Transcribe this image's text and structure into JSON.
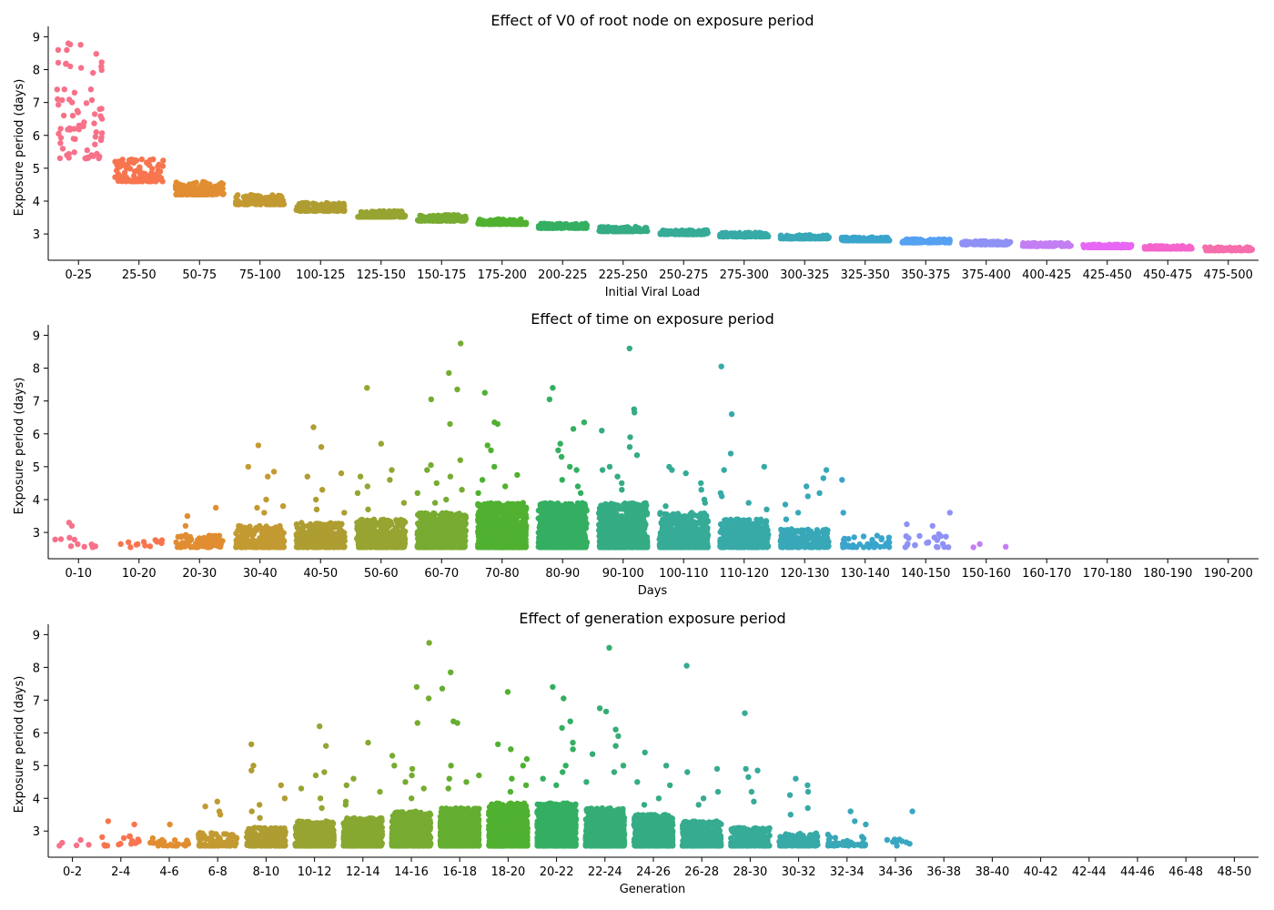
{
  "chart_data": [
    {
      "type": "scatter",
      "title": "Effect of V0 of root node on exposure period",
      "xlabel": "Initial Viral Load",
      "ylabel": "Exposure period (days)",
      "ylim": [
        2.2,
        9.15
      ],
      "yticks": [
        3,
        4,
        5,
        6,
        7,
        8,
        9
      ],
      "grid": false,
      "categories": [
        "0-25",
        "25-50",
        "50-75",
        "75-100",
        "100-125",
        "125-150",
        "150-175",
        "175-200",
        "200-225",
        "225-250",
        "250-275",
        "275-300",
        "300-325",
        "325-350",
        "350-375",
        "375-400",
        "400-425",
        "425-450",
        "450-475",
        "475-500"
      ],
      "colors": [
        "#f77189",
        "#f7754f",
        "#e18d31",
        "#c39a32",
        "#ae9d31",
        "#97a431",
        "#77ab31",
        "#50b131",
        "#34af62",
        "#35ac83",
        "#36ab97",
        "#37aaa7",
        "#38a8b8",
        "#3aa5cc",
        "#55a0f1",
        "#8f91f4",
        "#c47ef4",
        "#e766f4",
        "#f565cc",
        "#f66eab"
      ],
      "series": [
        {
          "category": "0-25",
          "n": 55,
          "y_min": 5.3,
          "y_max": 8.8,
          "outliers": [
            8.8,
            8.6,
            8.1,
            7.9,
            7.4,
            7.4,
            7.3,
            7.1,
            7.0,
            6.8,
            6.7,
            6.6,
            6.4,
            6.3,
            6.3,
            6.2,
            6.1,
            5.9
          ]
        },
        {
          "category": "25-50",
          "n": 120,
          "y_min": 4.6,
          "y_max": 5.3,
          "outliers": []
        },
        {
          "category": "50-75",
          "n": 140,
          "y_min": 4.2,
          "y_max": 4.6,
          "outliers": []
        },
        {
          "category": "75-100",
          "n": 150,
          "y_min": 3.9,
          "y_max": 4.2,
          "outliers": []
        },
        {
          "category": "100-125",
          "n": 150,
          "y_min": 3.7,
          "y_max": 3.95,
          "outliers": []
        },
        {
          "category": "125-150",
          "n": 150,
          "y_min": 3.52,
          "y_max": 3.7,
          "outliers": []
        },
        {
          "category": "150-175",
          "n": 150,
          "y_min": 3.4,
          "y_max": 3.58,
          "outliers": []
        },
        {
          "category": "175-200",
          "n": 150,
          "y_min": 3.3,
          "y_max": 3.45,
          "outliers": []
        },
        {
          "category": "200-225",
          "n": 150,
          "y_min": 3.18,
          "y_max": 3.32,
          "outliers": []
        },
        {
          "category": "225-250",
          "n": 150,
          "y_min": 3.08,
          "y_max": 3.22,
          "outliers": []
        },
        {
          "category": "250-275",
          "n": 150,
          "y_min": 2.99,
          "y_max": 3.12,
          "outliers": []
        },
        {
          "category": "275-300",
          "n": 150,
          "y_min": 2.92,
          "y_max": 3.04,
          "outliers": []
        },
        {
          "category": "300-325",
          "n": 150,
          "y_min": 2.86,
          "y_max": 2.97,
          "outliers": []
        },
        {
          "category": "325-350",
          "n": 150,
          "y_min": 2.8,
          "y_max": 2.9,
          "outliers": []
        },
        {
          "category": "350-375",
          "n": 150,
          "y_min": 2.74,
          "y_max": 2.84,
          "outliers": []
        },
        {
          "category": "375-400",
          "n": 150,
          "y_min": 2.68,
          "y_max": 2.78,
          "outliers": []
        },
        {
          "category": "400-425",
          "n": 150,
          "y_min": 2.63,
          "y_max": 2.73,
          "outliers": []
        },
        {
          "category": "425-450",
          "n": 150,
          "y_min": 2.59,
          "y_max": 2.68,
          "outliers": []
        },
        {
          "category": "450-475",
          "n": 150,
          "y_min": 2.55,
          "y_max": 2.64,
          "outliers": []
        },
        {
          "category": "475-500",
          "n": 140,
          "y_min": 2.5,
          "y_max": 2.6,
          "outliers": []
        }
      ]
    },
    {
      "type": "scatter",
      "title": "Effect of time on exposure period",
      "xlabel": "Days",
      "ylabel": "Exposure period (days)",
      "ylim": [
        2.2,
        9.15
      ],
      "yticks": [
        3,
        4,
        5,
        6,
        7,
        8,
        9
      ],
      "grid": false,
      "categories": [
        "0-10",
        "10-20",
        "20-30",
        "30-40",
        "40-50",
        "50-60",
        "60-70",
        "70-80",
        "80-90",
        "90-100",
        "100-110",
        "110-120",
        "120-130",
        "130-140",
        "140-150",
        "150-160",
        "160-170",
        "170-180",
        "180-190",
        "190-200"
      ],
      "colors": [
        "#f77189",
        "#f7754f",
        "#e18d31",
        "#c39a32",
        "#ae9d31",
        "#97a431",
        "#77ab31",
        "#50b131",
        "#34af62",
        "#35ac83",
        "#36ab97",
        "#37aaa7",
        "#38a8b8",
        "#3aa5cc",
        "#8f91f4",
        "#c47ef4",
        "#e766f4",
        "#f565cc",
        "#f66eab",
        "#f77189"
      ],
      "series": [
        {
          "category": "0-10",
          "n": 10,
          "y_min": 2.55,
          "y_max": 2.85,
          "outliers": [
            3.3,
            3.2
          ]
        },
        {
          "category": "10-20",
          "n": 14,
          "y_min": 2.55,
          "y_max": 2.8,
          "outliers": []
        },
        {
          "category": "20-30",
          "n": 80,
          "y_min": 2.55,
          "y_max": 2.95,
          "outliers": [
            3.75,
            3.5,
            3.2
          ]
        },
        {
          "category": "30-40",
          "n": 260,
          "y_min": 2.55,
          "y_max": 3.2,
          "outliers": [
            5.65,
            5.0,
            4.85,
            4.7,
            4.0,
            3.8,
            3.75,
            3.6
          ]
        },
        {
          "category": "40-50",
          "n": 360,
          "y_min": 2.55,
          "y_max": 3.3,
          "outliers": [
            6.2,
            5.6,
            4.8,
            4.7,
            4.3,
            4.0,
            3.7,
            3.6
          ]
        },
        {
          "category": "50-60",
          "n": 420,
          "y_min": 2.55,
          "y_max": 3.4,
          "outliers": [
            7.4,
            5.7,
            4.9,
            4.7,
            4.6,
            4.4,
            4.2,
            3.9,
            3.7
          ]
        },
        {
          "category": "60-70",
          "n": 650,
          "y_min": 2.55,
          "y_max": 3.6,
          "outliers": [
            8.75,
            7.85,
            7.35,
            7.05,
            6.3,
            5.2,
            5.05,
            4.9,
            4.7,
            4.5,
            4.3,
            4.2,
            4.0,
            3.9
          ]
        },
        {
          "category": "70-80",
          "n": 900,
          "y_min": 2.55,
          "y_max": 3.9,
          "outliers": [
            7.25,
            6.35,
            6.3,
            5.65,
            5.5,
            5.0,
            4.75,
            4.6,
            4.4,
            4.2
          ]
        },
        {
          "category": "80-90",
          "n": 950,
          "y_min": 2.55,
          "y_max": 3.9,
          "outliers": [
            7.4,
            7.05,
            6.35,
            6.15,
            5.7,
            5.5,
            5.3,
            5.0,
            4.9,
            4.6,
            4.4,
            4.2
          ]
        },
        {
          "category": "90-100",
          "n": 950,
          "y_min": 2.55,
          "y_max": 3.9,
          "outliers": [
            8.6,
            6.75,
            6.65,
            6.1,
            5.9,
            5.6,
            5.35,
            5.0,
            4.9,
            4.7,
            4.5,
            4.3
          ]
        },
        {
          "category": "100-110",
          "n": 650,
          "y_min": 2.55,
          "y_max": 3.6,
          "outliers": [
            5.0,
            4.9,
            4.8,
            4.5,
            4.3,
            4.0,
            3.9,
            3.8
          ]
        },
        {
          "category": "110-120",
          "n": 400,
          "y_min": 2.55,
          "y_max": 3.4,
          "outliers": [
            8.05,
            6.6,
            5.4,
            5.0,
            4.9,
            4.2,
            4.1,
            3.9,
            3.7
          ]
        },
        {
          "category": "120-130",
          "n": 180,
          "y_min": 2.55,
          "y_max": 3.1,
          "outliers": [
            4.9,
            4.65,
            4.4,
            4.2,
            4.1,
            3.85,
            3.6,
            3.4
          ]
        },
        {
          "category": "130-140",
          "n": 45,
          "y_min": 2.55,
          "y_max": 2.95,
          "outliers": [
            4.6,
            3.6
          ]
        },
        {
          "category": "140-150",
          "n": 20,
          "y_min": 2.55,
          "y_max": 2.95,
          "outliers": [
            3.6,
            3.25,
            3.2,
            2.95
          ]
        },
        {
          "category": "150-160",
          "n": 3,
          "y_min": 2.55,
          "y_max": 2.65,
          "outliers": []
        },
        {
          "category": "160-170",
          "n": 0,
          "y_min": 0,
          "y_max": 0,
          "outliers": []
        },
        {
          "category": "170-180",
          "n": 0,
          "y_min": 0,
          "y_max": 0,
          "outliers": []
        },
        {
          "category": "180-190",
          "n": 0,
          "y_min": 0,
          "y_max": 0,
          "outliers": []
        },
        {
          "category": "190-200",
          "n": 0,
          "y_min": 0,
          "y_max": 0,
          "outliers": []
        }
      ]
    },
    {
      "type": "scatter",
      "title": "Effect of generation exposure period",
      "xlabel": "Generation",
      "ylabel": "Exposure period (days)",
      "ylim": [
        2.2,
        9.15
      ],
      "yticks": [
        3,
        4,
        5,
        6,
        7,
        8,
        9
      ],
      "grid": false,
      "categories": [
        "0-2",
        "2-4",
        "4-6",
        "6-8",
        "8-10",
        "10-12",
        "12-14",
        "14-16",
        "16-18",
        "18-20",
        "20-22",
        "22-24",
        "24-26",
        "26-28",
        "28-30",
        "30-32",
        "32-34",
        "34-36",
        "36-38",
        "38-40",
        "40-42",
        "42-44",
        "44-46",
        "46-48",
        "48-50"
      ],
      "colors": [
        "#f77189",
        "#f7754f",
        "#e18d31",
        "#c39a32",
        "#ae9d31",
        "#97a431",
        "#86a831",
        "#77ab31",
        "#64ae31",
        "#50b131",
        "#34af62",
        "#35ad75",
        "#35ac83",
        "#36ab90",
        "#36ab97",
        "#37aaa7",
        "#38a8b8",
        "#39a7c2",
        "#3aa5cc",
        "#55a0f1",
        "#8f91f4",
        "#c47ef4",
        "#e766f4",
        "#f565cc",
        "#f66eab"
      ],
      "series": [
        {
          "category": "0-2",
          "n": 5,
          "y_min": 2.55,
          "y_max": 2.85,
          "outliers": []
        },
        {
          "category": "2-4",
          "n": 15,
          "y_min": 2.55,
          "y_max": 2.85,
          "outliers": [
            3.3,
            3.2
          ]
        },
        {
          "category": "4-6",
          "n": 25,
          "y_min": 2.55,
          "y_max": 2.8,
          "outliers": [
            3.2
          ]
        },
        {
          "category": "6-8",
          "n": 110,
          "y_min": 2.55,
          "y_max": 2.95,
          "outliers": [
            3.9,
            3.75,
            3.6,
            3.5
          ]
        },
        {
          "category": "8-10",
          "n": 320,
          "y_min": 2.55,
          "y_max": 3.1,
          "outliers": [
            5.65,
            5.0,
            4.85,
            4.4,
            4.0,
            3.8,
            3.6,
            3.4
          ]
        },
        {
          "category": "10-12",
          "n": 480,
          "y_min": 2.55,
          "y_max": 3.3,
          "outliers": [
            6.2,
            5.6,
            4.8,
            4.7,
            4.3,
            4.0,
            3.7
          ]
        },
        {
          "category": "12-14",
          "n": 620,
          "y_min": 2.55,
          "y_max": 3.4,
          "outliers": [
            5.7,
            4.6,
            4.4,
            4.2,
            3.9,
            3.8
          ]
        },
        {
          "category": "14-16",
          "n": 800,
          "y_min": 2.55,
          "y_max": 3.6,
          "outliers": [
            8.75,
            7.4,
            7.05,
            6.3,
            5.3,
            5.0,
            4.9,
            4.7,
            4.5,
            4.3,
            4.0
          ]
        },
        {
          "category": "16-18",
          "n": 900,
          "y_min": 2.55,
          "y_max": 3.7,
          "outliers": [
            7.85,
            7.35,
            6.35,
            6.3,
            5.0,
            4.7,
            4.6,
            4.5,
            4.3
          ]
        },
        {
          "category": "18-20",
          "n": 1000,
          "y_min": 2.55,
          "y_max": 3.85,
          "outliers": [
            7.25,
            5.65,
            5.5,
            5.2,
            5.0,
            4.6,
            4.4,
            4.2
          ]
        },
        {
          "category": "20-22",
          "n": 1000,
          "y_min": 2.55,
          "y_max": 3.85,
          "outliers": [
            7.4,
            7.05,
            6.35,
            6.15,
            5.7,
            5.5,
            5.0,
            4.8,
            4.6,
            4.4
          ]
        },
        {
          "category": "22-24",
          "n": 900,
          "y_min": 2.55,
          "y_max": 3.7,
          "outliers": [
            8.6,
            6.75,
            6.65,
            6.1,
            5.9,
            5.6,
            5.35,
            5.0,
            4.8,
            4.5
          ]
        },
        {
          "category": "24-26",
          "n": 700,
          "y_min": 2.55,
          "y_max": 3.5,
          "outliers": [
            5.4,
            5.0,
            4.5,
            4.4,
            4.0,
            3.8
          ]
        },
        {
          "category": "26-28",
          "n": 480,
          "y_min": 2.55,
          "y_max": 3.3,
          "outliers": [
            8.05,
            4.9,
            4.8,
            4.2,
            4.0,
            3.8
          ]
        },
        {
          "category": "28-30",
          "n": 300,
          "y_min": 2.55,
          "y_max": 3.1,
          "outliers": [
            6.6,
            4.9,
            4.85,
            4.65,
            4.2,
            3.9
          ]
        },
        {
          "category": "30-32",
          "n": 150,
          "y_min": 2.55,
          "y_max": 2.95,
          "outliers": [
            4.6,
            4.4,
            4.2,
            4.1,
            3.7,
            3.5
          ]
        },
        {
          "category": "32-34",
          "n": 40,
          "y_min": 2.55,
          "y_max": 2.9,
          "outliers": [
            3.6,
            3.3,
            3.2
          ]
        },
        {
          "category": "34-36",
          "n": 10,
          "y_min": 2.55,
          "y_max": 2.8,
          "outliers": [
            3.6
          ]
        },
        {
          "category": "36-38",
          "n": 0,
          "y_min": 0,
          "y_max": 0,
          "outliers": []
        },
        {
          "category": "38-40",
          "n": 0,
          "y_min": 0,
          "y_max": 0,
          "outliers": []
        },
        {
          "category": "40-42",
          "n": 0,
          "y_min": 0,
          "y_max": 0,
          "outliers": []
        },
        {
          "category": "42-44",
          "n": 0,
          "y_min": 0,
          "y_max": 0,
          "outliers": []
        },
        {
          "category": "44-46",
          "n": 0,
          "y_min": 0,
          "y_max": 0,
          "outliers": []
        },
        {
          "category": "46-48",
          "n": 0,
          "y_min": 0,
          "y_max": 0,
          "outliers": []
        },
        {
          "category": "48-50",
          "n": 0,
          "y_min": 0,
          "y_max": 0,
          "outliers": []
        }
      ]
    }
  ]
}
